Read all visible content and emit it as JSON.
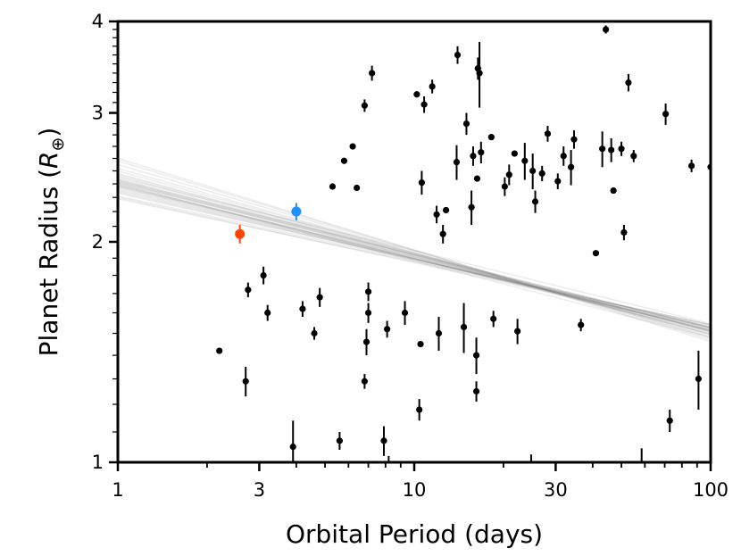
{
  "chart_data": {
    "type": "scatter",
    "title": "",
    "xlabel": "Orbital Period (days)",
    "ylabel_main": "Planet Radius (",
    "ylabel_symbol": "R",
    "ylabel_subscript": "⊕",
    "ylabel_close": ")",
    "xscale": "log",
    "yscale": "log",
    "xlim": [
      1,
      100
    ],
    "ylim": [
      1,
      4
    ],
    "xticks": [
      1,
      3,
      10,
      30,
      100
    ],
    "xtick_labels": [
      "1",
      "3",
      "10",
      "30",
      "100"
    ],
    "yticks": [
      1,
      2,
      3,
      4
    ],
    "ytick_labels": [
      "1",
      "2",
      "3",
      "4"
    ],
    "grid": false,
    "fit_lines": {
      "description": "power-law fit samples R = A * P^k",
      "color": "#808080",
      "samples": [
        [
          2.45,
          -0.1
        ],
        [
          2.42,
          -0.103
        ],
        [
          2.38,
          -0.098
        ],
        [
          2.4,
          -0.105
        ],
        [
          2.47,
          -0.107
        ],
        [
          2.36,
          -0.095
        ],
        [
          2.43,
          -0.101
        ],
        [
          2.39,
          -0.1
        ],
        [
          2.5,
          -0.112
        ],
        [
          2.34,
          -0.092
        ],
        [
          2.41,
          -0.099
        ],
        [
          2.44,
          -0.104
        ],
        [
          2.37,
          -0.097
        ],
        [
          2.46,
          -0.108
        ],
        [
          2.35,
          -0.094
        ],
        [
          2.48,
          -0.11
        ],
        [
          2.4,
          -0.102
        ],
        [
          2.42,
          -0.1
        ],
        [
          2.38,
          -0.096
        ],
        [
          2.52,
          -0.115
        ],
        [
          2.33,
          -0.09
        ],
        [
          2.55,
          -0.118
        ],
        [
          2.31,
          -0.088
        ],
        [
          2.58,
          -0.122
        ],
        [
          2.29,
          -0.086
        ],
        [
          2.43,
          -0.103
        ],
        [
          2.39,
          -0.099
        ],
        [
          2.41,
          -0.101
        ],
        [
          2.6,
          -0.125
        ],
        [
          2.3,
          -0.089
        ]
      ]
    },
    "series": [
      {
        "name": "sample",
        "color": "#000000",
        "points": [
          {
            "x": 2.2,
            "y": 1.42
          },
          {
            "x": 2.7,
            "y": 1.29,
            "err": 0.06
          },
          {
            "x": 2.75,
            "y": 1.72,
            "err": 0.04
          },
          {
            "x": 3.1,
            "y": 1.8,
            "err": 0.05
          },
          {
            "x": 3.2,
            "y": 1.6,
            "err": 0.04
          },
          {
            "x": 3.9,
            "y": 1.05,
            "err": 0.09
          },
          {
            "x": 4.2,
            "y": 1.62,
            "err": 0.04
          },
          {
            "x": 4.6,
            "y": 1.5,
            "err": 0.03
          },
          {
            "x": 4.8,
            "y": 1.68,
            "err": 0.05
          },
          {
            "x": 5.3,
            "y": 2.38
          },
          {
            "x": 5.6,
            "y": 1.07,
            "err": 0.03
          },
          {
            "x": 5.8,
            "y": 2.58
          },
          {
            "x": 6.2,
            "y": 2.7
          },
          {
            "x": 6.4,
            "y": 2.37
          },
          {
            "x": 6.8,
            "y": 1.29,
            "err": 0.03
          },
          {
            "x": 6.9,
            "y": 1.46,
            "err": 0.06
          },
          {
            "x": 6.8,
            "y": 3.07,
            "err": 0.06
          },
          {
            "x": 7.0,
            "y": 1.71,
            "err": 0.05
          },
          {
            "x": 7.0,
            "y": 1.6,
            "err": 0.05
          },
          {
            "x": 7.2,
            "y": 3.4,
            "err": 0.08
          },
          {
            "x": 7.9,
            "y": 1.07,
            "err": 0.05
          },
          {
            "x": 8.1,
            "y": 1.52,
            "err": 0.04
          },
          {
            "x": 9.3,
            "y": 1.6,
            "err": 0.06
          },
          {
            "x": 10.2,
            "y": 3.18
          },
          {
            "x": 10.4,
            "y": 1.18,
            "err": 0.04
          },
          {
            "x": 10.5,
            "y": 1.45
          },
          {
            "x": 10.6,
            "y": 2.41,
            "err": 0.09
          },
          {
            "x": 10.8,
            "y": 3.08,
            "err": 0.08
          },
          {
            "x": 11.5,
            "y": 3.26,
            "err": 0.07
          },
          {
            "x": 11.9,
            "y": 2.18,
            "err": 0.06
          },
          {
            "x": 12.1,
            "y": 1.5,
            "err": 0.08
          },
          {
            "x": 12.5,
            "y": 2.05,
            "err": 0.06
          },
          {
            "x": 12.8,
            "y": 2.21
          },
          {
            "x": 13.9,
            "y": 2.57,
            "err": 0.14
          },
          {
            "x": 14.0,
            "y": 3.6,
            "err": 0.1
          },
          {
            "x": 14.7,
            "y": 1.53,
            "err": 0.12
          },
          {
            "x": 15.0,
            "y": 2.9,
            "err": 0.1
          },
          {
            "x": 15.6,
            "y": 2.23,
            "err": 0.12
          },
          {
            "x": 15.8,
            "y": 2.62,
            "err": 0.08
          },
          {
            "x": 16.2,
            "y": 1.25,
            "err": 0.04
          },
          {
            "x": 16.2,
            "y": 1.4,
            "err": 0.08
          },
          {
            "x": 16.3,
            "y": 2.44
          },
          {
            "x": 16.4,
            "y": 3.45,
            "err": 0.12
          },
          {
            "x": 16.6,
            "y": 3.4,
            "err": 0.35
          },
          {
            "x": 16.8,
            "y": 2.65,
            "err": 0.09
          },
          {
            "x": 18.2,
            "y": 2.78
          },
          {
            "x": 18.5,
            "y": 1.57,
            "err": 0.04
          },
          {
            "x": 20.2,
            "y": 2.38,
            "err": 0.07
          },
          {
            "x": 20.9,
            "y": 2.47,
            "err": 0.08
          },
          {
            "x": 21.8,
            "y": 2.64
          },
          {
            "x": 22.3,
            "y": 1.51,
            "err": 0.06
          },
          {
            "x": 23.6,
            "y": 2.58,
            "err": 0.15
          },
          {
            "x": 25.1,
            "y": 2.5,
            "err": 0.14
          },
          {
            "x": 25.6,
            "y": 2.27,
            "err": 0.08
          },
          {
            "x": 27.0,
            "y": 2.48,
            "err": 0.06
          },
          {
            "x": 28.2,
            "y": 2.81,
            "err": 0.07
          },
          {
            "x": 30.5,
            "y": 2.42,
            "err": 0.06
          },
          {
            "x": 31.9,
            "y": 2.62,
            "err": 0.08
          },
          {
            "x": 33.8,
            "y": 2.53,
            "err": 0.14
          },
          {
            "x": 34.6,
            "y": 2.76,
            "err": 0.08
          },
          {
            "x": 36.5,
            "y": 1.54,
            "err": 0.03
          },
          {
            "x": 41.0,
            "y": 1.93
          },
          {
            "x": 43.1,
            "y": 2.68,
            "err": 0.15
          },
          {
            "x": 44.3,
            "y": 3.9,
            "err": 0.05
          },
          {
            "x": 46.2,
            "y": 2.67,
            "err": 0.1
          },
          {
            "x": 47.0,
            "y": 2.35
          },
          {
            "x": 50.0,
            "y": 2.68,
            "err": 0.06
          },
          {
            "x": 51.0,
            "y": 2.06,
            "err": 0.05
          },
          {
            "x": 52.8,
            "y": 3.3,
            "err": 0.09
          },
          {
            "x": 55.0,
            "y": 2.62,
            "err": 0.05
          },
          {
            "x": 70.5,
            "y": 2.99,
            "err": 0.1
          },
          {
            "x": 72.8,
            "y": 1.14,
            "err": 0.04
          },
          {
            "x": 86.2,
            "y": 2.54,
            "err": 0.05
          },
          {
            "x": 91.0,
            "y": 1.3,
            "err": 0.12
          },
          {
            "x": 100.0,
            "y": 2.53
          }
        ]
      },
      {
        "name": "highlight-orange",
        "color": "#ff4500",
        "points": [
          {
            "x": 2.58,
            "y": 2.05,
            "err": 0.06
          }
        ]
      },
      {
        "name": "highlight-blue",
        "color": "#1e90ff",
        "points": [
          {
            "x": 4.0,
            "y": 2.2,
            "err": 0.06
          }
        ]
      }
    ],
    "clipped_error_bars": [
      {
        "x": 8.2,
        "top": 1.02
      },
      {
        "x": 24.8,
        "top": 1.025
      },
      {
        "x": 58.5,
        "top": 1.045
      }
    ]
  }
}
